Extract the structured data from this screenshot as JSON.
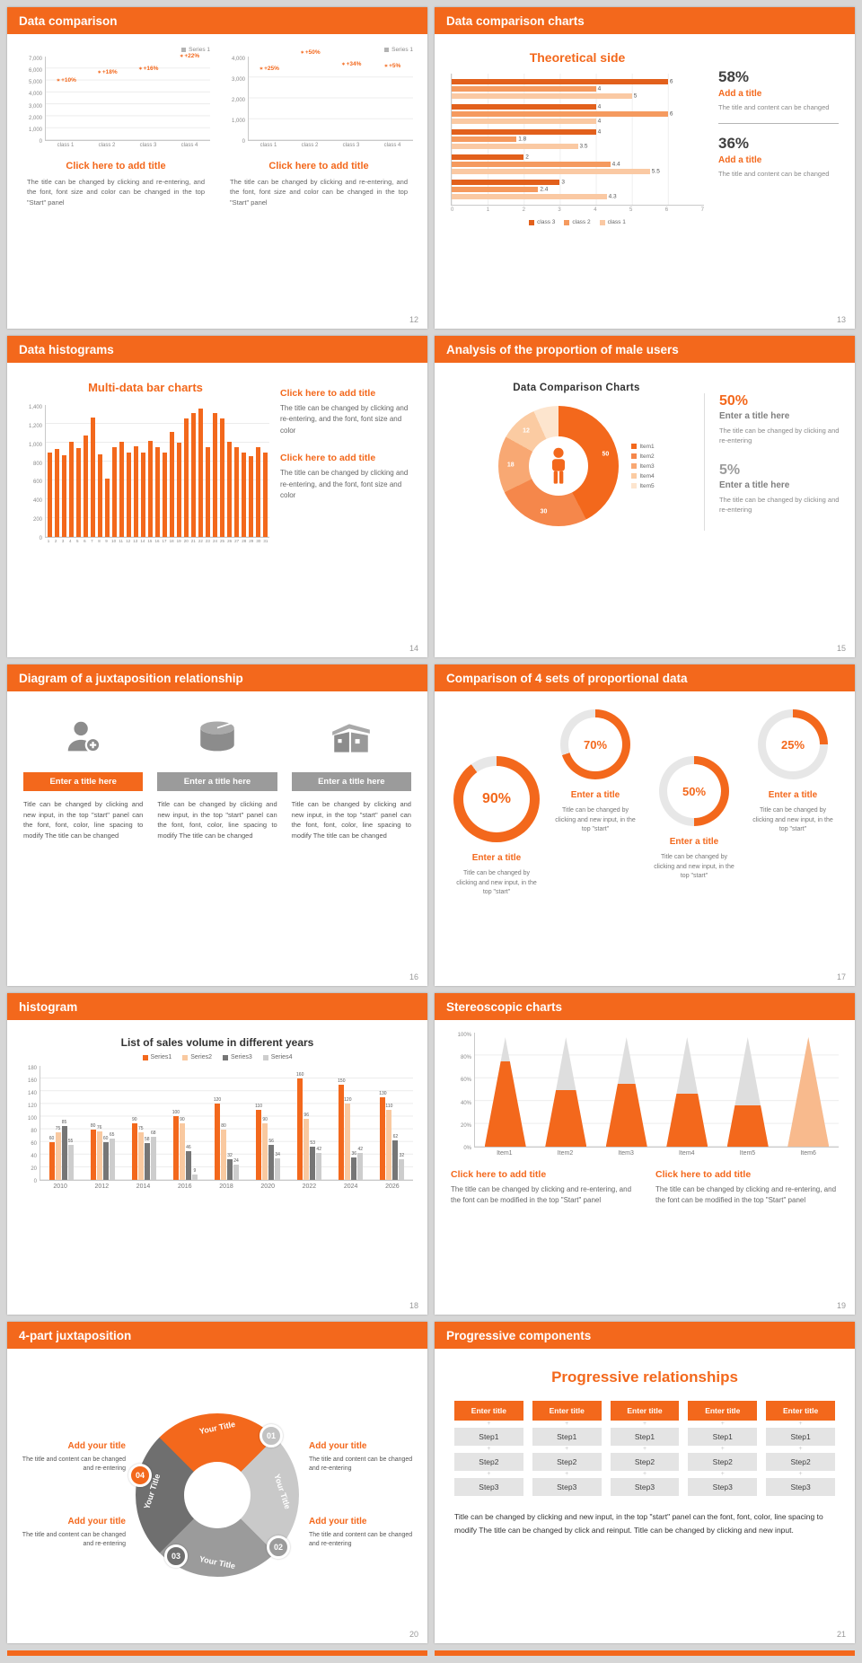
{
  "deck": {
    "accent": "#F3681C",
    "background": "#D6D6D6"
  },
  "slides": [
    {
      "title": "Data comparison",
      "page_number": "12",
      "panels": [
        {
          "chart": {
            "type": "column",
            "legend": "Series 1",
            "ymax": 7000,
            "yticks": [
              "7,000",
              "6,000",
              "5,000",
              "4,000",
              "3,000",
              "2,000",
              "1,000",
              "0"
            ],
            "categories": [
              "class 1",
              "class 2",
              "class 3",
              "class 4"
            ],
            "orange": [
              4600,
              5300,
              5600,
              6600
            ],
            "gray": [
              4100,
              4700,
              4900,
              5000
            ],
            "pcts": [
              "+10%",
              "+18%",
              "+16%",
              "+22%"
            ]
          },
          "title": "Click here to add title",
          "body": "The title can be changed by clicking and re-entering, and the font, font size and color can be changed in the top \"Start\" panel"
        },
        {
          "chart": {
            "type": "column",
            "legend": "Series 1",
            "ymax": 4000,
            "yticks": [
              "4,000",
              "3,000",
              "2,000",
              "1,000",
              "0"
            ],
            "categories": [
              "class 1",
              "class 2",
              "class 3",
              "class 4"
            ],
            "orange": [
              3200,
              3950,
              3400,
              3300
            ],
            "gray": [
              2500,
              2700,
              2400,
              3100
            ],
            "pcts": [
              "+25%",
              "+50%",
              "+34%",
              "+5%"
            ]
          },
          "title": "Click here to add title",
          "body": "The title can be changed by clicking and re-entering, and the font, font size and color can be changed in the top \"Start\" panel"
        }
      ]
    },
    {
      "title": "Data comparison charts",
      "page_number": "13",
      "heading": "Theoretical side",
      "chart": {
        "type": "hbar",
        "xmax": 7,
        "xticks": [
          "0",
          "1",
          "2",
          "3",
          "4",
          "5",
          "6",
          "7"
        ],
        "groups": [
          [
            6,
            4,
            5
          ],
          [
            4,
            6,
            4
          ],
          [
            4,
            1.8,
            3.5
          ],
          [
            2,
            4.4,
            5.5
          ],
          [
            3,
            2.4,
            4.3
          ]
        ],
        "colors": [
          "#E2601C",
          "#F59A5F",
          "#FAC9A3"
        ],
        "legend": [
          {
            "label": "class 3",
            "color": "#E2601C"
          },
          {
            "label": "class 2",
            "color": "#F59A5F"
          },
          {
            "label": "class 1",
            "color": "#FAC9A3"
          }
        ]
      },
      "stats": [
        {
          "value": "58%",
          "title": "Add a title",
          "body": "The title and content can be changed"
        },
        {
          "value": "36%",
          "title": "Add a title",
          "body": "The title and content can be changed"
        }
      ]
    },
    {
      "title": "Data histograms",
      "page_number": "14",
      "heading": "Multi-data bar charts",
      "chart": {
        "type": "hist",
        "ymax": 1400,
        "yticks": [
          "1,400",
          "1,200",
          "1,000",
          "800",
          "600",
          "400",
          "200",
          "0"
        ],
        "xlabels": [
          "1",
          "2",
          "3",
          "4",
          "5",
          "6",
          "7",
          "8",
          "9",
          "10",
          "11",
          "12",
          "13",
          "14",
          "15",
          "16",
          "17",
          "18",
          "19",
          "20",
          "21",
          "22",
          "23",
          "24",
          "25",
          "26",
          "27",
          "28",
          "29",
          "30",
          "31"
        ],
        "values": [
          900,
          930,
          870,
          1010,
          940,
          1080,
          1270,
          880,
          620,
          950,
          1010,
          900,
          960,
          900,
          1020,
          950,
          900,
          1110,
          1000,
          1260,
          1310,
          1360,
          950,
          1310,
          1260,
          1010,
          950,
          900,
          860,
          950,
          900
        ]
      },
      "blocks": [
        {
          "title": "Click here to add title",
          "body": "The title can be changed by clicking and re-entering, and the font, font size and color"
        },
        {
          "title": "Click here to add title",
          "body": "The title can be changed by clicking and re-entering, and the font, font size and color"
        }
      ]
    },
    {
      "title": "Analysis of the proportion of male users",
      "page_number": "15",
      "chart_title": "Data Comparison Charts",
      "chart": {
        "type": "donut",
        "values": [
          50,
          30,
          18,
          12,
          8
        ],
        "labels": [
          "50",
          "30",
          "18",
          "12",
          ""
        ],
        "colors": [
          "#F3681C",
          "#F5874B",
          "#F8A873",
          "#FBCBA2",
          "#FDE5CE"
        ],
        "legend": [
          "Item1",
          "Item2",
          "Item3",
          "Item4",
          "Item5"
        ]
      },
      "stats": [
        {
          "value": "50%",
          "title": "Enter a title here",
          "body": "The title can be changed by clicking and re-entering"
        },
        {
          "value": "5%",
          "title": "Enter a title here",
          "body": "The title can be changed by clicking and re-entering"
        }
      ]
    },
    {
      "title": "Diagram of a juxtaposition relationship",
      "page_number": "16",
      "items": [
        {
          "icon": "person-plus-icon",
          "title": "Enter a title here",
          "body": "Title can be changed by clicking and new input, in the top \"start\" panel can the font, font, color, line spacing to modify The title can be changed"
        },
        {
          "icon": "cake-icon",
          "title": "Enter a title here",
          "body": "Title can be changed by clicking and new input, in the top \"start\" panel can the font, font, color, line spacing to modify The title can be changed"
        },
        {
          "icon": "building-icon",
          "title": "Enter a title here",
          "body": "Title can be changed by clicking and new input, in the top \"start\" panel can the font, font, color, line spacing to modify The title can be changed"
        }
      ]
    },
    {
      "title": "Comparison of 4 sets of proportional data",
      "page_number": "17",
      "gauges": [
        {
          "type": "gauge",
          "pct": 90,
          "label": "90%",
          "gauge_title": "Enter a title",
          "body": "Title can be changed by clicking and new input, in the top \"start\""
        },
        {
          "type": "gauge",
          "pct": 70,
          "label": "70%",
          "gauge_title": "Enter a title",
          "body": "Title can be changed by clicking and new input, in the top \"start\""
        },
        {
          "type": "gauge",
          "pct": 50,
          "label": "50%",
          "gauge_title": "Enter a title",
          "body": "Title can be changed by clicking and new input, in the top \"start\""
        },
        {
          "type": "gauge",
          "pct": 25,
          "label": "25%",
          "gauge_title": "Enter a title",
          "body": "Title can be changed by clicking and new input, in the top \"start\""
        }
      ]
    },
    {
      "title": "histogram",
      "page_number": "18",
      "chart_title": "List of sales volume in different years",
      "chart": {
        "type": "gbar",
        "ymax": 180,
        "yticks": [
          "180",
          "160",
          "140",
          "120",
          "100",
          "80",
          "60",
          "40",
          "20",
          "0"
        ],
        "categories": [
          "2010",
          "2012",
          "2014",
          "2016",
          "2018",
          "2020",
          "2022",
          "2024",
          "2026"
        ],
        "series": [
          {
            "name": "Series1",
            "color": "#F3681C",
            "values": [
              60,
              80,
              90,
              100,
              120,
              110,
              160,
              150,
              130
            ]
          },
          {
            "name": "Series2",
            "color": "#F9C9A0",
            "values": [
              75,
              76,
              75,
              90,
              80,
              90,
              96,
              120,
              110
            ]
          },
          {
            "name": "Series3",
            "color": "#767676",
            "values": [
              85,
              60,
              58,
              46,
              32,
              56,
              53,
              36,
              62
            ]
          },
          {
            "name": "Series4",
            "color": "#CDCDCD",
            "values": [
              55,
              65,
              68,
              9,
              24,
              34,
              42,
              42,
              32
            ]
          }
        ]
      }
    },
    {
      "title": "Stereoscopic charts",
      "page_number": "19",
      "chart": {
        "type": "cones",
        "yticks": [
          "100%",
          "80%",
          "60%",
          "40%",
          "20%",
          "0%"
        ],
        "items": [
          {
            "label": "Item1",
            "pct": 78,
            "color": "#F3681C"
          },
          {
            "label": "Item2",
            "pct": 52,
            "color": "#F3681C"
          },
          {
            "label": "Item3",
            "pct": 57,
            "color": "#F3681C"
          },
          {
            "label": "Item4",
            "pct": 48,
            "color": "#F3681C"
          },
          {
            "label": "Item5",
            "pct": 38,
            "color": "#F3681C"
          },
          {
            "label": "Item6",
            "pct": 100,
            "color": "#F8BA8D"
          }
        ]
      },
      "blocks": [
        {
          "title": "Click here to add title",
          "body": "The title can be changed by clicking and re-entering, and the font can be modified in the top \"Start\" panel"
        },
        {
          "title": "Click here to add title",
          "body": "The title can be changed by clicking and re-entering, and the font can be modified in the top \"Start\" panel"
        }
      ]
    },
    {
      "title": "4-part juxtaposition",
      "page_number": "20",
      "ring": {
        "segment_labels": [
          "Your Title",
          "Your Title",
          "Your Title",
          "Your Title"
        ],
        "badges": [
          "01",
          "02",
          "03",
          "04"
        ]
      },
      "blocks": [
        {
          "title": "Add your title",
          "body": "The title and content can be changed and re-entering"
        },
        {
          "title": "Add your title",
          "body": "The title and content can be changed and re-entering"
        },
        {
          "title": "Add your title",
          "body": "The title and content can be changed and re-entering"
        },
        {
          "title": "Add your title",
          "body": "The title and content can be changed and re-entering"
        }
      ]
    },
    {
      "title": "Progressive components",
      "page_number": "21",
      "heading": "Progressive relationships",
      "table": {
        "type": "steps",
        "columns": [
          {
            "header": "Enter title",
            "steps": [
              "Step1",
              "Step2",
              "Step3"
            ]
          },
          {
            "header": "Enter title",
            "steps": [
              "Step1",
              "Step2",
              "Step3"
            ]
          },
          {
            "header": "Enter title",
            "steps": [
              "Step1",
              "Step2",
              "Step3"
            ]
          },
          {
            "header": "Enter title",
            "steps": [
              "Step1",
              "Step2",
              "Step3"
            ]
          },
          {
            "header": "Enter title",
            "steps": [
              "Step1",
              "Step2",
              "Step3"
            ]
          }
        ]
      },
      "note": "Title can be changed by clicking and new input, in the top \"start\" panel can the font, font, color, line spacing to modify The title can be changed by click and reinput. Title can be changed by clicking and new input."
    }
  ]
}
